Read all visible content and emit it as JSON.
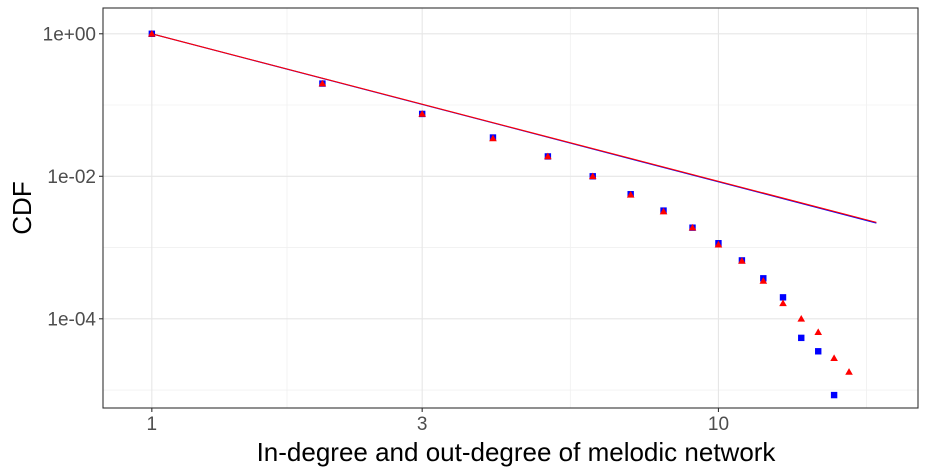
{
  "chart_data": {
    "type": "scatter",
    "xlabel": "In-degree and out-degree of melodic network",
    "ylabel": "CDF",
    "xscale": "log",
    "yscale": "log",
    "xlim": [
      0.82,
      22.5
    ],
    "ylim": [
      5.6e-06,
      2.3
    ],
    "x_ticks": [
      {
        "value": 1,
        "label": "1"
      },
      {
        "value": 3,
        "label": "3"
      },
      {
        "value": 10,
        "label": "10"
      }
    ],
    "y_ticks": [
      {
        "value": 1,
        "label": "1e+00"
      },
      {
        "value": 0.01,
        "label": "1e-02"
      },
      {
        "value": 0.0001,
        "label": "1e-04"
      }
    ],
    "grid": true,
    "legend": "none",
    "series": [
      {
        "marker": "square",
        "color": "#0000ff",
        "points": [
          [
            1,
            1.0
          ],
          [
            2,
            0.2
          ],
          [
            3,
            0.075
          ],
          [
            4,
            0.035
          ],
          [
            5,
            0.019
          ],
          [
            6,
            0.01
          ],
          [
            7,
            0.0056
          ],
          [
            8,
            0.0033
          ],
          [
            9,
            0.0019
          ],
          [
            10,
            0.00115
          ],
          [
            11,
            0.00066
          ],
          [
            12,
            0.00037
          ],
          [
            13,
            0.0002
          ],
          [
            14,
            5.4e-05
          ],
          [
            15,
            3.5e-05
          ],
          [
            16,
            8.5e-06
          ]
        ]
      },
      {
        "marker": "triangle",
        "color": "#ff0000",
        "points": [
          [
            1,
            1.0
          ],
          [
            2,
            0.2
          ],
          [
            3,
            0.075
          ],
          [
            4,
            0.034
          ],
          [
            5,
            0.019
          ],
          [
            6,
            0.01
          ],
          [
            7,
            0.0055
          ],
          [
            8,
            0.0032
          ],
          [
            9,
            0.0019
          ],
          [
            10,
            0.0011
          ],
          [
            11,
            0.00065
          ],
          [
            12,
            0.00034
          ],
          [
            13,
            0.000165
          ],
          [
            14,
            0.0001
          ],
          [
            15,
            6.5e-05
          ],
          [
            16,
            2.8e-05
          ],
          [
            17,
            1.8e-05
          ]
        ]
      }
    ],
    "fit_lines": [
      {
        "color": "#0000ff",
        "points": [
          [
            1,
            1.0
          ],
          [
            19,
            0.0022
          ]
        ]
      },
      {
        "color": "#ff0000",
        "points": [
          [
            1,
            1.0
          ],
          [
            19,
            0.00225
          ]
        ]
      }
    ]
  }
}
